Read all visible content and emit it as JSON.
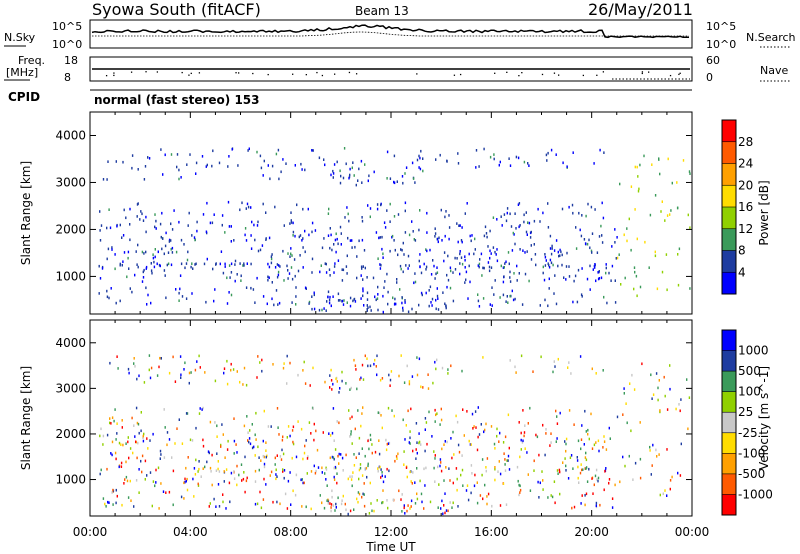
{
  "header": {
    "title": "Syowa South (fitACF)",
    "beam": "Beam 13",
    "date": "26/May/2011"
  },
  "top_panels": {
    "nsky_label": "N.Sky",
    "nsearch_label": "N.Search",
    "count_ticks": [
      "10^5",
      "10^0"
    ],
    "freq_label": "Freq.",
    "freq_unit": "[MHz]",
    "freq_ticks": [
      "18",
      "8"
    ],
    "nave_label": "Nave",
    "nave_ticks": [
      "60",
      "0"
    ],
    "cpid_label": "CPID",
    "cpid_value": "normal (fast stereo) 153"
  },
  "chart_data": [
    {
      "type": "heatmap",
      "name": "power-panel",
      "x_range_hours": [
        0,
        24
      ],
      "x_ticks": [
        "00:00",
        "04:00",
        "08:00",
        "12:00",
        "16:00",
        "20:00",
        "00:00"
      ],
      "xlabel": "Time UT",
      "ylabel": "Slant Range [km]",
      "y_range": [
        200,
        4500
      ],
      "y_ticks": [
        1000,
        2000,
        3000,
        4000
      ],
      "colorbar": {
        "label": "Power [dB]",
        "ticks": [
          "28",
          "24",
          "20",
          "16",
          "12",
          "8",
          "4"
        ],
        "colors": [
          "#ff0000",
          "#ff5a00",
          "#ffa000",
          "#ffdc00",
          "#90d000",
          "#3a9a5a",
          "#1e3ca0",
          "#0000ff"
        ]
      }
    },
    {
      "type": "heatmap",
      "name": "velocity-panel",
      "x_range_hours": [
        0,
        24
      ],
      "x_ticks": [
        "00:00",
        "04:00",
        "08:00",
        "12:00",
        "16:00",
        "20:00",
        "00:00"
      ],
      "xlabel": "Time UT",
      "ylabel": "Slant Range [km]",
      "y_range": [
        200,
        4500
      ],
      "y_ticks": [
        1000,
        2000,
        3000,
        4000
      ],
      "colorbar": {
        "label": "Velocity [m s^-1]",
        "ticks": [
          "1000",
          "500",
          "100",
          "25",
          "-25",
          "-100",
          "-500",
          "-1000"
        ],
        "colors": [
          "#0000ff",
          "#1e3ca0",
          "#3a9a5a",
          "#90d000",
          "#c8c8c8",
          "#ffdc00",
          "#ffa000",
          "#ff5a00",
          "#ff0000"
        ]
      }
    }
  ]
}
